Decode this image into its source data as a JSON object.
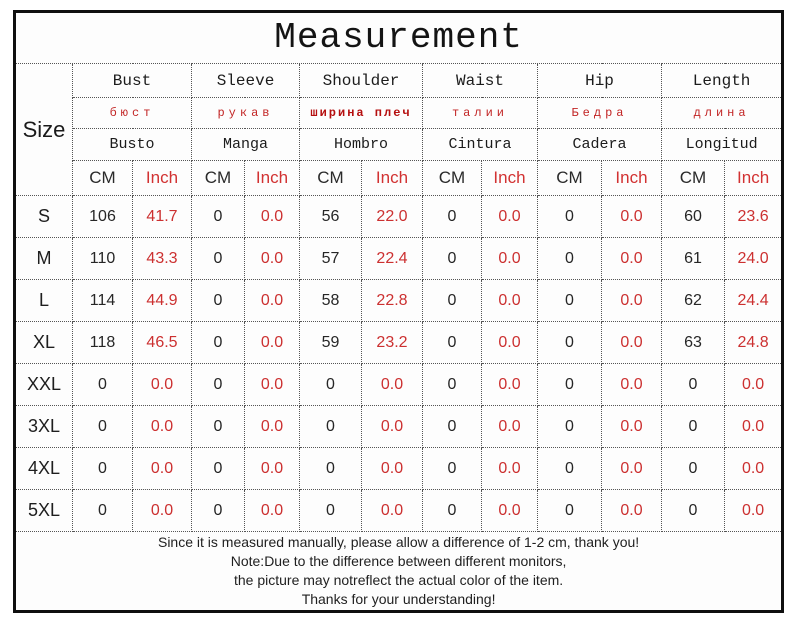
{
  "title": "Measurement",
  "table": {
    "corner_label": "Size",
    "unit_labels": {
      "cm": "CM",
      "inch": "Inch"
    },
    "columns": [
      {
        "en": "Bust",
        "ru": "бюст",
        "es": "Busto"
      },
      {
        "en": "Sleeve",
        "ru": "рукав",
        "es": "Manga"
      },
      {
        "en": "Shoulder",
        "ru": "ширина плеч",
        "es": "Hombro"
      },
      {
        "en": "Waist",
        "ru": "талии",
        "es": "Cintura"
      },
      {
        "en": "Hip",
        "ru": "Бедра",
        "es": "Cadera"
      },
      {
        "en": "Length",
        "ru": "длина",
        "es": "Longitud"
      }
    ],
    "rows": [
      {
        "size": "S",
        "values": [
          "106",
          "41.7",
          "0",
          "0.0",
          "56",
          "22.0",
          "0",
          "0.0",
          "0",
          "0.0",
          "60",
          "23.6"
        ]
      },
      {
        "size": "M",
        "values": [
          "110",
          "43.3",
          "0",
          "0.0",
          "57",
          "22.4",
          "0",
          "0.0",
          "0",
          "0.0",
          "61",
          "24.0"
        ]
      },
      {
        "size": "L",
        "values": [
          "114",
          "44.9",
          "0",
          "0.0",
          "58",
          "22.8",
          "0",
          "0.0",
          "0",
          "0.0",
          "62",
          "24.4"
        ]
      },
      {
        "size": "XL",
        "values": [
          "118",
          "46.5",
          "0",
          "0.0",
          "59",
          "23.2",
          "0",
          "0.0",
          "0",
          "0.0",
          "63",
          "24.8"
        ]
      },
      {
        "size": "XXL",
        "values": [
          "0",
          "0.0",
          "0",
          "0.0",
          "0",
          "0.0",
          "0",
          "0.0",
          "0",
          "0.0",
          "0",
          "0.0"
        ]
      },
      {
        "size": "3XL",
        "values": [
          "0",
          "0.0",
          "0",
          "0.0",
          "0",
          "0.0",
          "0",
          "0.0",
          "0",
          "0.0",
          "0",
          "0.0"
        ]
      },
      {
        "size": "4XL",
        "values": [
          "0",
          "0.0",
          "0",
          "0.0",
          "0",
          "0.0",
          "0",
          "0.0",
          "0",
          "0.0",
          "0",
          "0.0"
        ]
      },
      {
        "size": "5XL",
        "values": [
          "0",
          "0.0",
          "0",
          "0.0",
          "0",
          "0.0",
          "0",
          "0.0",
          "0",
          "0.0",
          "0",
          "0.0"
        ]
      }
    ]
  },
  "notes": [
    "Since it is measured manually, please allow a difference of 1-2 cm, thank you!",
    "Note:Due to the difference between different monitors,",
    "the picture may notreflect the actual color of the item.",
    "Thanks for your understanding!"
  ],
  "colors": {
    "accent_red": "#cc3030",
    "russian_red": "#c22525",
    "shoulder_bold_red": "#b50f0f",
    "text": "#222222",
    "border": "#0f0f0f"
  }
}
